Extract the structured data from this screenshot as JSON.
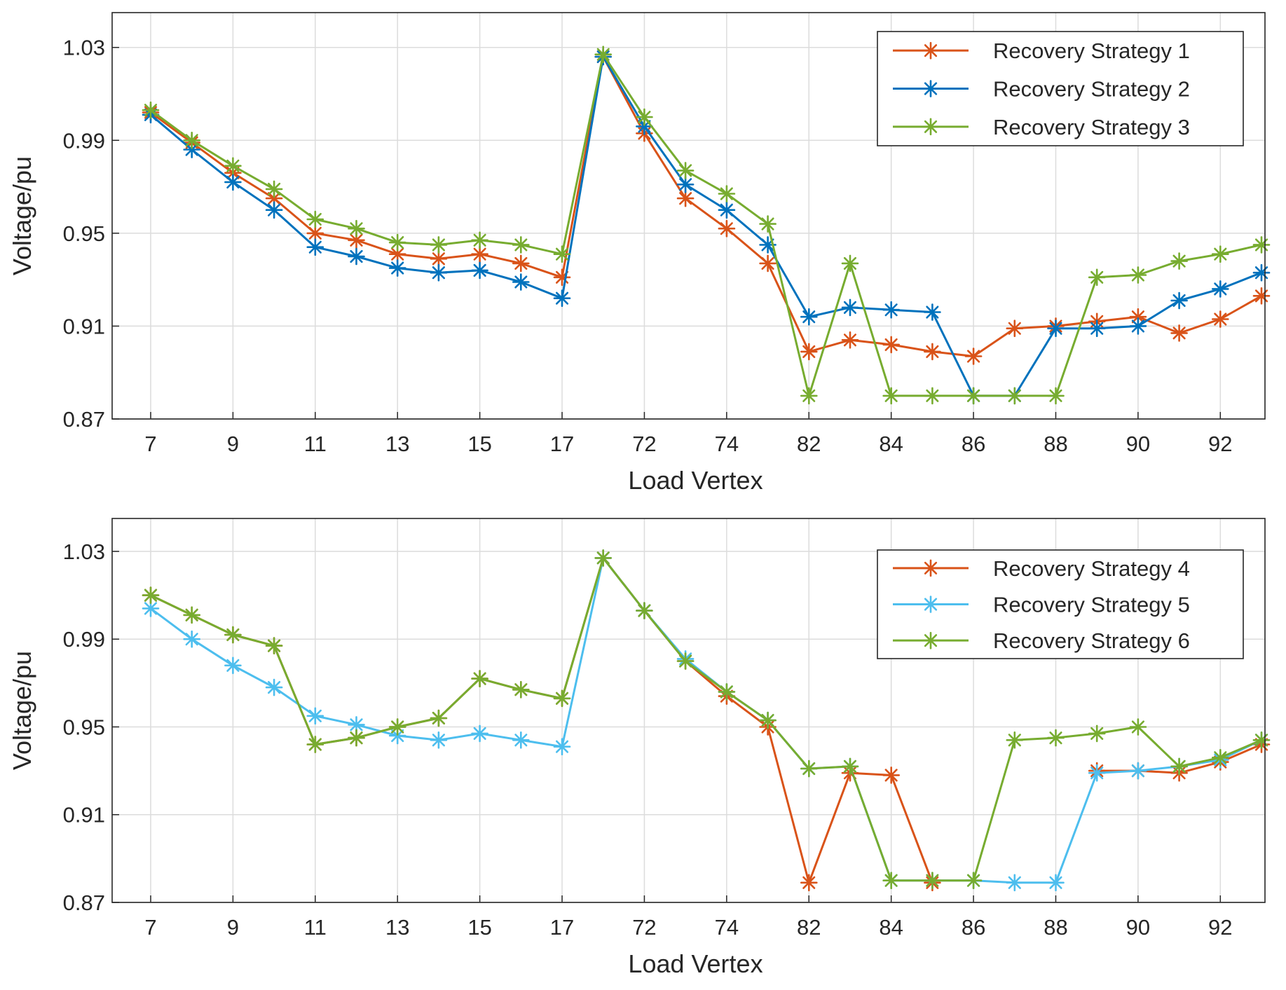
{
  "chart_data": [
    {
      "type": "line",
      "title": "",
      "xlabel": "Load Vertex",
      "ylabel": "Voltage/pu",
      "categories": [
        "7",
        "8",
        "9",
        "10",
        "11",
        "12",
        "13",
        "14",
        "15",
        "16",
        "17",
        "18",
        "72",
        "73",
        "74",
        "75",
        "82",
        "83",
        "84",
        "85",
        "86",
        "87",
        "88",
        "89",
        "90",
        "91",
        "92",
        "93"
      ],
      "xtick_labels": [
        "7",
        "9",
        "11",
        "13",
        "15",
        "17",
        "72",
        "74",
        "82",
        "84",
        "86",
        "88",
        "90",
        "92"
      ],
      "ylim": [
        0.87,
        1.045
      ],
      "yticks": [
        0.87,
        0.91,
        0.95,
        0.99,
        1.03
      ],
      "ytick_labels": [
        "0.87",
        "0.91",
        "0.95",
        "0.99",
        "1.03"
      ],
      "grid": true,
      "legend_position": "top-right",
      "series": [
        {
          "name": "Recovery Strategy 1",
          "color": "#D95319",
          "values": [
            1.002,
            0.989,
            0.976,
            0.965,
            0.95,
            0.947,
            0.941,
            0.939,
            0.941,
            0.937,
            0.931,
            1.026,
            0.993,
            0.965,
            0.952,
            0.937,
            0.899,
            0.904,
            0.902,
            0.899,
            0.897,
            0.909,
            0.91,
            0.912,
            0.914,
            0.907,
            0.913,
            0.923
          ]
        },
        {
          "name": "Recovery Strategy 2",
          "color": "#0072BD",
          "values": [
            1.001,
            0.986,
            0.972,
            0.96,
            0.944,
            0.94,
            0.935,
            0.933,
            0.934,
            0.929,
            0.922,
            1.026,
            0.996,
            0.971,
            0.96,
            0.945,
            0.914,
            0.918,
            0.917,
            0.916,
            0.88,
            0.88,
            0.909,
            0.909,
            0.91,
            0.921,
            0.926,
            0.933
          ]
        },
        {
          "name": "Recovery Strategy 3",
          "color": "#77AC30",
          "values": [
            1.003,
            0.99,
            0.979,
            0.969,
            0.956,
            0.952,
            0.946,
            0.945,
            0.947,
            0.945,
            0.941,
            1.027,
            1.0,
            0.977,
            0.967,
            0.954,
            0.88,
            0.937,
            0.88,
            0.88,
            0.88,
            0.88,
            0.88,
            0.931,
            0.932,
            0.938,
            0.941,
            0.945
          ]
        }
      ]
    },
    {
      "type": "line",
      "title": "",
      "xlabel": "Load Vertex",
      "ylabel": "Voltage/pu",
      "categories": [
        "7",
        "8",
        "9",
        "10",
        "11",
        "12",
        "13",
        "14",
        "15",
        "16",
        "17",
        "18",
        "72",
        "73",
        "74",
        "75",
        "82",
        "83",
        "84",
        "85",
        "86",
        "87",
        "88",
        "89",
        "90",
        "91",
        "92",
        "93"
      ],
      "xtick_labels": [
        "7",
        "9",
        "11",
        "13",
        "15",
        "17",
        "72",
        "74",
        "82",
        "84",
        "86",
        "88",
        "90",
        "92"
      ],
      "ylim": [
        0.87,
        1.045
      ],
      "yticks": [
        0.87,
        0.91,
        0.95,
        0.99,
        1.03
      ],
      "ytick_labels": [
        "0.87",
        "0.91",
        "0.95",
        "0.99",
        "1.03"
      ],
      "grid": true,
      "legend_position": "top-right",
      "series": [
        {
          "name": "Recovery Strategy 4",
          "color": "#D95319",
          "values": [
            1.01,
            1.001,
            0.992,
            0.987,
            0.942,
            0.945,
            0.95,
            0.954,
            0.972,
            0.967,
            0.963,
            1.027,
            1.003,
            0.98,
            0.964,
            0.95,
            0.879,
            0.929,
            0.928,
            0.879,
            null,
            null,
            null,
            0.93,
            0.93,
            0.929,
            0.934,
            0.942
          ]
        },
        {
          "name": "Recovery Strategy 5",
          "color": "#4DBEEE",
          "values": [
            1.004,
            0.99,
            0.978,
            0.968,
            0.955,
            0.951,
            0.946,
            0.944,
            0.947,
            0.944,
            0.941,
            1.027,
            1.003,
            0.981,
            0.966,
            0.953,
            0.931,
            0.932,
            0.88,
            0.88,
            0.88,
            0.879,
            0.879,
            0.929,
            0.93,
            0.932,
            0.935,
            0.944
          ]
        },
        {
          "name": "Recovery Strategy 6",
          "color": "#77AC30",
          "values": [
            1.01,
            1.001,
            0.992,
            0.987,
            0.942,
            0.945,
            0.95,
            0.954,
            0.972,
            0.967,
            0.963,
            1.027,
            1.003,
            0.98,
            0.966,
            0.953,
            0.931,
            0.932,
            0.88,
            0.88,
            0.88,
            0.944,
            0.945,
            0.947,
            0.95,
            0.932,
            0.936,
            0.944
          ]
        }
      ]
    }
  ]
}
